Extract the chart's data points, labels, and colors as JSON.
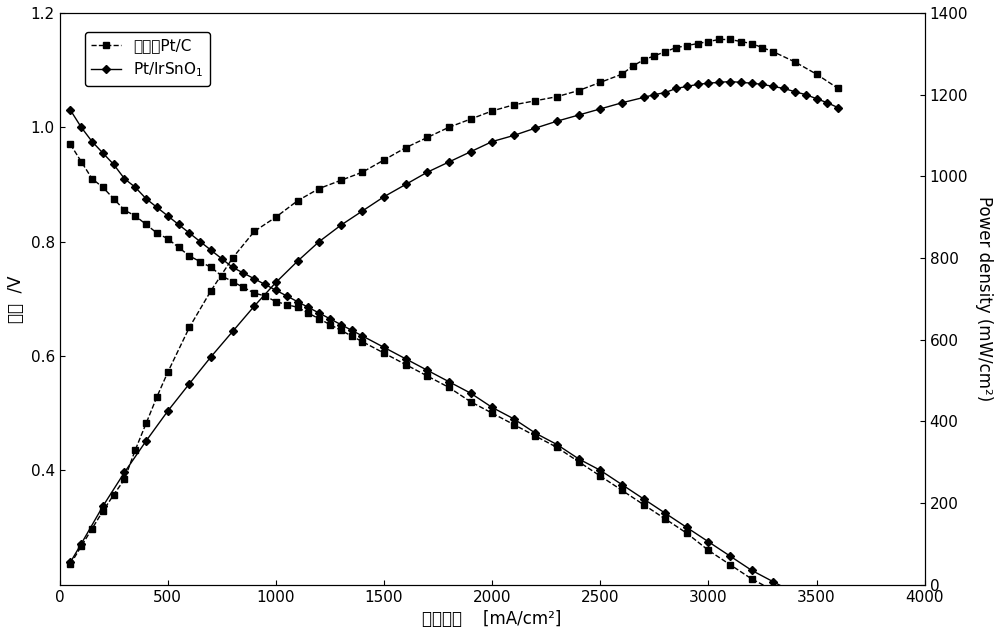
{
  "xlabel": "电流密度    [mA/cm²]",
  "ylabel_left": "电压  /V",
  "ylabel_right": "Power density (mW/cm²)",
  "xlim": [
    0,
    4000
  ],
  "ylim_left": [
    0.2,
    1.2
  ],
  "ylim_right": [
    0,
    1400
  ],
  "xticks": [
    0,
    500,
    1000,
    1500,
    2000,
    2500,
    3000,
    3500,
    4000
  ],
  "yticks_left": [
    0.4,
    0.6,
    0.8,
    1.0,
    1.2
  ],
  "yticks_right": [
    0,
    200,
    400,
    600,
    800,
    1000,
    1200,
    1400
  ],
  "legend1": "商业化Pt/C",
  "legend2": "Pt/IrSnO$_{1}$",
  "background_color": "#ffffff",
  "voltage_ptc_x": [
    50,
    100,
    150,
    200,
    250,
    300,
    350,
    400,
    450,
    500,
    550,
    600,
    650,
    700,
    750,
    800,
    850,
    900,
    950,
    1000,
    1050,
    1100,
    1150,
    1200,
    1250,
    1300,
    1350,
    1400,
    1500,
    1600,
    1700,
    1800,
    1900,
    2000,
    2100,
    2200,
    2300,
    2400,
    2500,
    2600,
    2700,
    2800,
    2900,
    3000,
    3100,
    3200,
    3300,
    3400,
    3500,
    3600
  ],
  "voltage_ptc_y": [
    0.97,
    0.94,
    0.91,
    0.895,
    0.875,
    0.855,
    0.845,
    0.83,
    0.815,
    0.805,
    0.79,
    0.775,
    0.765,
    0.755,
    0.74,
    0.73,
    0.72,
    0.71,
    0.705,
    0.695,
    0.69,
    0.685,
    0.675,
    0.665,
    0.655,
    0.645,
    0.635,
    0.625,
    0.605,
    0.585,
    0.565,
    0.545,
    0.52,
    0.5,
    0.48,
    0.46,
    0.44,
    0.415,
    0.39,
    0.365,
    0.34,
    0.315,
    0.29,
    0.26,
    0.235,
    0.21,
    0.19,
    0.17,
    0.155,
    0.14
  ],
  "power_ptc_x": [
    50,
    100,
    150,
    200,
    250,
    300,
    350,
    400,
    450,
    500,
    600,
    700,
    800,
    900,
    1000,
    1100,
    1200,
    1300,
    1400,
    1500,
    1600,
    1700,
    1800,
    1900,
    2000,
    2100,
    2200,
    2300,
    2400,
    2500,
    2600,
    2650,
    2700,
    2750,
    2800,
    2850,
    2900,
    2950,
    3000,
    3050,
    3100,
    3150,
    3200,
    3250,
    3300,
    3400,
    3500,
    3600
  ],
  "power_ptc_y": [
    50,
    94,
    137,
    180,
    220,
    258,
    330,
    395,
    460,
    520,
    630,
    720,
    800,
    865,
    900,
    940,
    970,
    990,
    1010,
    1040,
    1070,
    1095,
    1120,
    1140,
    1160,
    1175,
    1185,
    1195,
    1210,
    1230,
    1250,
    1270,
    1285,
    1295,
    1305,
    1315,
    1320,
    1325,
    1330,
    1335,
    1335,
    1330,
    1325,
    1315,
    1305,
    1280,
    1250,
    1215
  ],
  "voltage_irsno_x": [
    50,
    100,
    150,
    200,
    250,
    300,
    350,
    400,
    450,
    500,
    550,
    600,
    650,
    700,
    750,
    800,
    850,
    900,
    950,
    1000,
    1050,
    1100,
    1150,
    1200,
    1250,
    1300,
    1350,
    1400,
    1500,
    1600,
    1700,
    1800,
    1900,
    2000,
    2100,
    2200,
    2300,
    2400,
    2500,
    2600,
    2700,
    2800,
    2900,
    3000,
    3100,
    3200,
    3300,
    3400,
    3500,
    3600
  ],
  "voltage_irsno_y": [
    1.03,
    1.0,
    0.975,
    0.955,
    0.935,
    0.91,
    0.895,
    0.875,
    0.86,
    0.845,
    0.83,
    0.815,
    0.8,
    0.785,
    0.77,
    0.755,
    0.745,
    0.735,
    0.725,
    0.715,
    0.705,
    0.695,
    0.685,
    0.675,
    0.665,
    0.655,
    0.645,
    0.635,
    0.615,
    0.595,
    0.575,
    0.555,
    0.535,
    0.51,
    0.49,
    0.465,
    0.445,
    0.42,
    0.4,
    0.375,
    0.35,
    0.325,
    0.3,
    0.275,
    0.25,
    0.225,
    0.205,
    0.185,
    0.165,
    0.145
  ],
  "power_irsno_x": [
    50,
    100,
    200,
    300,
    400,
    500,
    600,
    700,
    800,
    900,
    1000,
    1100,
    1200,
    1300,
    1400,
    1500,
    1600,
    1700,
    1800,
    1900,
    2000,
    2100,
    2200,
    2300,
    2400,
    2500,
    2600,
    2700,
    2750,
    2800,
    2850,
    2900,
    2950,
    3000,
    3050,
    3100,
    3150,
    3200,
    3250,
    3300,
    3350,
    3400,
    3450,
    3500,
    3550,
    3600
  ],
  "power_irsno_y": [
    55,
    100,
    192,
    275,
    352,
    425,
    492,
    558,
    620,
    682,
    740,
    792,
    840,
    880,
    915,
    950,
    980,
    1010,
    1035,
    1060,
    1085,
    1100,
    1118,
    1135,
    1150,
    1165,
    1180,
    1193,
    1200,
    1205,
    1215,
    1220,
    1225,
    1228,
    1230,
    1232,
    1230,
    1228,
    1225,
    1220,
    1215,
    1207,
    1200,
    1190,
    1180,
    1168
  ]
}
